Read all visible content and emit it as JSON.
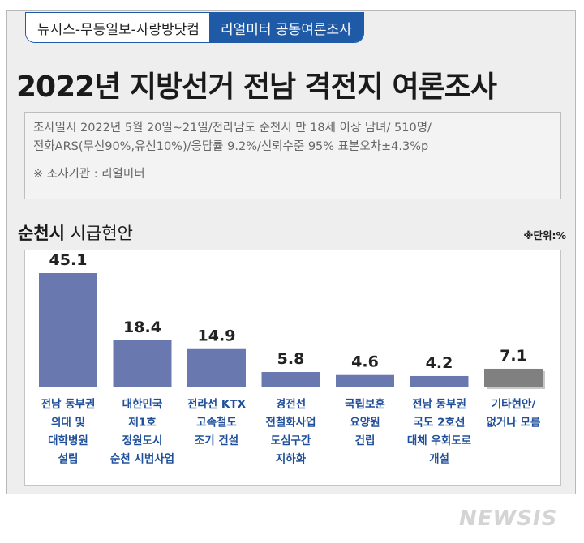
{
  "header": {
    "source_tag": "뉴시스-무등일보-사랑방닷컴",
    "agency_tag": "리얼미터 공동여론조사"
  },
  "title": "2022년 지방선거 전남 격전지 여론조사",
  "info": {
    "line1": "조사일시 2022년 5월 20일∼21일/전라남도 순천시 만 18세 이상 남녀/ 510명/",
    "line2": "전화ARS(무선90%,유선10%)/응답률 9.2%/신뢰수준 95% 표본오차±4.3%p",
    "line3": "※ 조사기관 : 리얼미터"
  },
  "subtitle": {
    "region": "순천시",
    "topic": "시급현안"
  },
  "unit": "※단위:%",
  "logo": "NEWSIS",
  "colors": {
    "accent": "#1f5aa6",
    "bar": "#6a78b0",
    "bar_other": "#808080",
    "label": "#1f4f9a"
  },
  "chart_data": {
    "type": "bar",
    "categories": [
      "전남 동부권 의대 및 대학병원 설립",
      "대한민국 제1호 정원도시 순천 시범사업",
      "전라선 KTX 고속철도 조기 건설",
      "경전선 전철화사업 도심구간 지하화",
      "국립보훈 요양원 건립",
      "전남 동부권 국도 2호선 대체 우회도로 개설",
      "기타현안/ 없거나 모름"
    ],
    "category_lines": [
      [
        "전남 동부권",
        "의대 및",
        "대학병원",
        "설립"
      ],
      [
        "대한민국",
        "제1호",
        "정원도시",
        "순천 시범사업"
      ],
      [
        "전라선 KTX",
        "고속철도",
        "조기 건설"
      ],
      [
        "경전선",
        "전철화사업",
        "도심구간",
        "지하화"
      ],
      [
        "국립보훈",
        "요양원",
        "건립"
      ],
      [
        "전남 동부권",
        "국도 2호선",
        "대체 우회도로",
        "개설"
      ],
      [
        "기타현안/",
        "없거나 모름"
      ]
    ],
    "values": [
      45.1,
      18.4,
      14.9,
      5.8,
      4.6,
      4.2,
      7.1
    ],
    "value_labels": [
      "45.1",
      "18.4",
      "14.9",
      "5.8",
      "4.6",
      "4.2",
      "7.1"
    ],
    "highlight_last": true,
    "ylim": [
      0,
      45.1
    ],
    "grid": false,
    "legend": "none"
  }
}
